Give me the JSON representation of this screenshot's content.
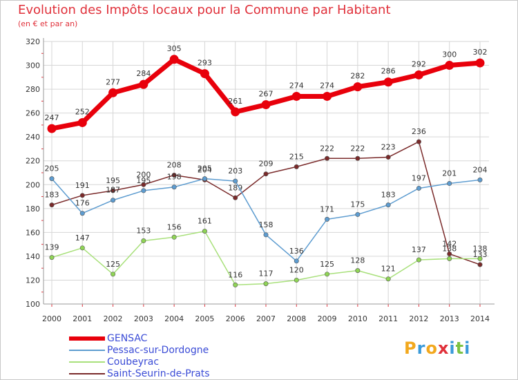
{
  "header": {
    "title": "Evolution des Impôts locaux pour la Commune par Habitant",
    "subtitle": "(en € et par an)"
  },
  "brand": {
    "letters": [
      "P",
      "r",
      "o",
      "x",
      "i",
      "t",
      "i"
    ],
    "colors": [
      "#f2a81d",
      "#3a9ad9",
      "#f2a81d",
      "#e0303a",
      "#3a9ad9",
      "#7cc242",
      "#3a9ad9"
    ]
  },
  "chart_data": {
    "type": "line",
    "title": "Evolution des Impôts locaux pour la Commune par Habitant",
    "subtitle": "(en € et par an)",
    "xlabel": "",
    "ylabel": "",
    "ylim": [
      100,
      320
    ],
    "ytick_step": 20,
    "grid": true,
    "legend_position": "bottom-left",
    "categories": [
      "2000",
      "2001",
      "2002",
      "2003",
      "2004",
      "2005",
      "2006",
      "2007",
      "2008",
      "2009",
      "2010",
      "2011",
      "2012",
      "2013",
      "2014"
    ],
    "series": [
      {
        "name": "GENSAC",
        "color": "#e8000b",
        "values": [
          247,
          252,
          277,
          284,
          305,
          293,
          261,
          267,
          274,
          274,
          282,
          286,
          292,
          300,
          302
        ]
      },
      {
        "name": "Pessac-sur-Dordogne",
        "color": "#5d9cd0",
        "values": [
          205,
          176,
          187,
          195,
          198,
          205,
          203,
          158,
          136,
          171,
          175,
          183,
          197,
          201,
          204
        ]
      },
      {
        "name": "Coubeyrac",
        "color": "#a8e07a",
        "values": [
          139,
          147,
          125,
          153,
          156,
          161,
          116,
          117,
          120,
          125,
          128,
          121,
          137,
          138,
          138
        ]
      },
      {
        "name": "Saint-Seurin-de-Prats",
        "color": "#7a2a2a",
        "values": [
          183,
          191,
          195,
          200,
          208,
          204,
          189,
          209,
          215,
          222,
          222,
          223,
          236,
          142,
          133
        ]
      }
    ]
  }
}
